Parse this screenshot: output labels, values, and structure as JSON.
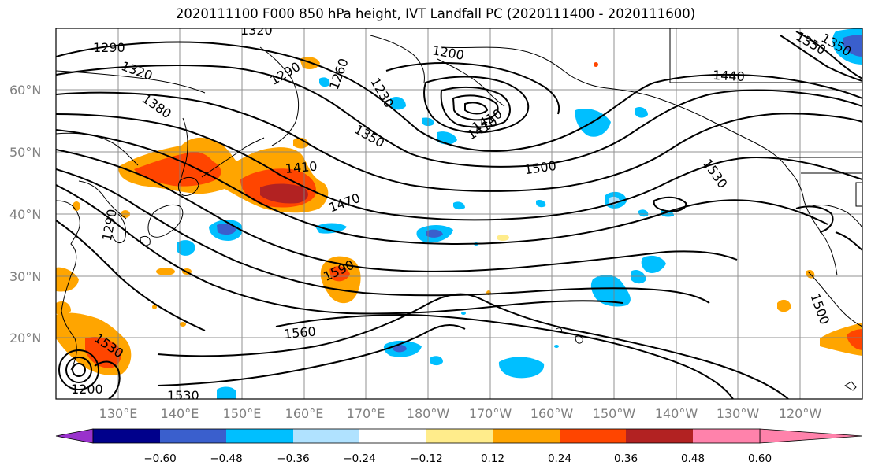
{
  "title": "2020111100 F000 850 hPa height, IVT Landfall PC (2020111400 - 2020111600)",
  "map": {
    "lat_labels": [
      "60°N",
      "50°N",
      "40°N",
      "30°N",
      "20°N"
    ],
    "lon_labels": [
      "130°E",
      "140°E",
      "150°E",
      "160°E",
      "170°E",
      "180°W",
      "170°W",
      "160°W",
      "150°W",
      "140°W",
      "130°W",
      "120°W"
    ],
    "contour_labels": [
      "1290",
      "1320",
      "1290",
      "1260",
      "1230",
      "1200",
      "1320",
      "1350",
      "1380",
      "1350",
      "1410",
      "1410",
      "1410",
      "1440",
      "1470",
      "1500",
      "1530",
      "1590",
      "1560",
      "1530",
      "1500",
      "1530",
      "1290",
      "1200",
      "1350"
    ]
  },
  "colorbar": {
    "colors": [
      "#9932cc",
      "#00008b",
      "#3a5fcd",
      "#00bfff",
      "#b0e2ff",
      "#ffffff",
      "#ffec8b",
      "#ffa500",
      "#ff4500",
      "#b22222",
      "#ff82ab"
    ],
    "tick_labels": [
      "−0.60",
      "−0.48",
      "−0.36",
      "−0.24",
      "−0.12",
      "0.12",
      "0.24",
      "0.36",
      "0.48",
      "0.60"
    ]
  },
  "colors": {
    "grid": "#808080",
    "contour": "#000000"
  }
}
